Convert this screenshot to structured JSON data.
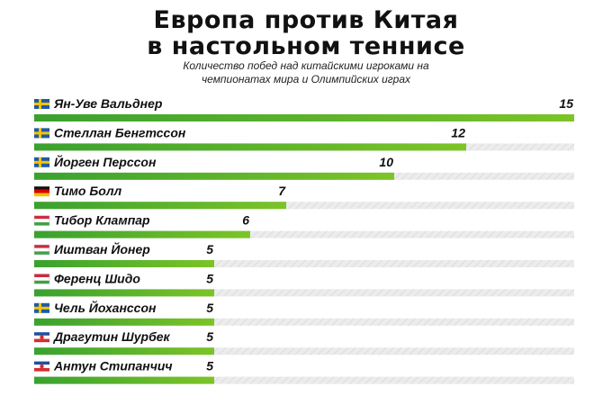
{
  "title_line1": "Европа против Китая",
  "title_line2": "в настольном теннисе",
  "subtitle_line1": "Количество побед над китайскими игроками на",
  "subtitle_line2": "чемпионатах мира и Олимпийских играх",
  "colors": {
    "bar": "#3aa12f",
    "bar_light": "#7cc427",
    "track": "#e6e6e6"
  },
  "chart_data": {
    "type": "bar",
    "orientation": "horizontal",
    "title": "Европа против Китая в настольном теннисе",
    "subtitle": "Количество побед над китайскими игроками на чемпионатах мира и Олимпийских играх",
    "xlim": [
      0,
      15
    ],
    "grid": false,
    "categories": [
      "Ян-Уве Вальднер",
      "Стеллан Бенгтссон",
      "Йорген Перссон",
      "Тимо Болл",
      "Тибор Клампар",
      "Иштван Йонер",
      "Ференц Шидо",
      "Чель Йохансcон",
      "Драгутин Шурбек",
      "Антун Стипанчич"
    ],
    "values": [
      15,
      12,
      10,
      7,
      6,
      5,
      5,
      5,
      5,
      5
    ],
    "flags": [
      "sweden",
      "sweden",
      "sweden",
      "germany",
      "hungary",
      "hungary",
      "hungary",
      "sweden",
      "yugoslavia",
      "yugoslavia"
    ]
  }
}
